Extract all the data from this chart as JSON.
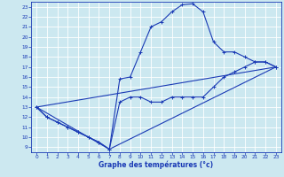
{
  "title": "Graphe des températures (°c)",
  "bg_color": "#cce8f0",
  "grid_color": "#ffffff",
  "line_color": "#1a3ab5",
  "xlim": [
    -0.5,
    23.5
  ],
  "ylim": [
    8.5,
    23.5
  ],
  "xticks": [
    0,
    1,
    2,
    3,
    4,
    5,
    6,
    7,
    8,
    9,
    10,
    11,
    12,
    13,
    14,
    15,
    16,
    17,
    18,
    19,
    20,
    21,
    22,
    23
  ],
  "yticks": [
    9,
    10,
    11,
    12,
    13,
    14,
    15,
    16,
    17,
    18,
    19,
    20,
    21,
    22,
    23
  ],
  "curve_max_x": [
    0,
    1,
    2,
    3,
    4,
    5,
    6,
    7,
    8,
    9,
    10,
    11,
    12,
    13,
    14,
    15,
    16,
    17,
    18,
    19,
    20,
    21,
    22,
    23
  ],
  "curve_max_y": [
    13,
    12,
    11.5,
    11,
    10.5,
    10,
    9.5,
    8.8,
    15.8,
    16,
    18.5,
    21,
    21.5,
    22.5,
    23.2,
    23.3,
    22.5,
    19.5,
    18.5,
    18.5,
    18,
    17.5,
    17.5,
    17
  ],
  "curve_min_x": [
    0,
    1,
    2,
    3,
    4,
    5,
    6,
    7,
    8,
    9,
    10,
    11,
    12,
    13,
    14,
    15,
    16,
    17,
    18,
    19,
    20,
    21,
    22,
    23
  ],
  "curve_min_y": [
    13,
    12,
    11.5,
    11,
    10.5,
    10,
    9.5,
    8.8,
    13.5,
    14,
    14,
    13.5,
    13.5,
    14,
    14,
    14,
    14,
    15,
    16,
    16.5,
    17,
    17.5,
    17.5,
    17
  ],
  "line1_x": [
    0,
    7,
    23
  ],
  "line1_y": [
    13,
    8.8,
    17
  ],
  "line2_x": [
    0,
    23
  ],
  "line2_y": [
    13,
    17
  ]
}
